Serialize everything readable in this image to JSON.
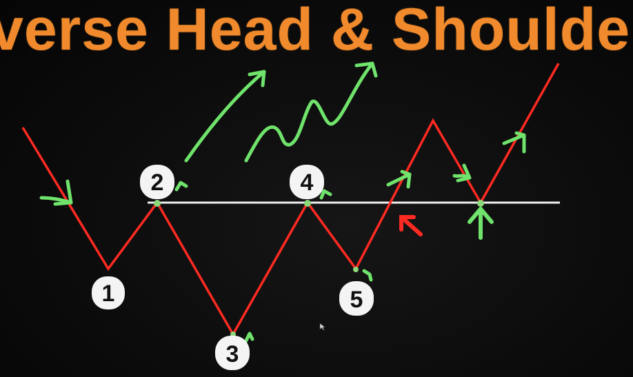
{
  "title": "verse Head & Shoulders",
  "points": [
    {
      "id": "point-1",
      "label": "1"
    },
    {
      "id": "point-2",
      "label": "2"
    },
    {
      "id": "point-3",
      "label": "3"
    },
    {
      "id": "point-4",
      "label": "4"
    },
    {
      "id": "point-5",
      "label": "5"
    }
  ],
  "colors": {
    "title": "#f08a2c",
    "price_line": "#ff2a22",
    "neckline": "#f2f2f2",
    "annotation": "#6fe36b",
    "marker_red": "#ff2a22",
    "label_bg": "#f4f4f4",
    "background": "#0a0a0a"
  },
  "icons": [
    "up-arrow-icon",
    "pointer-icon"
  ]
}
